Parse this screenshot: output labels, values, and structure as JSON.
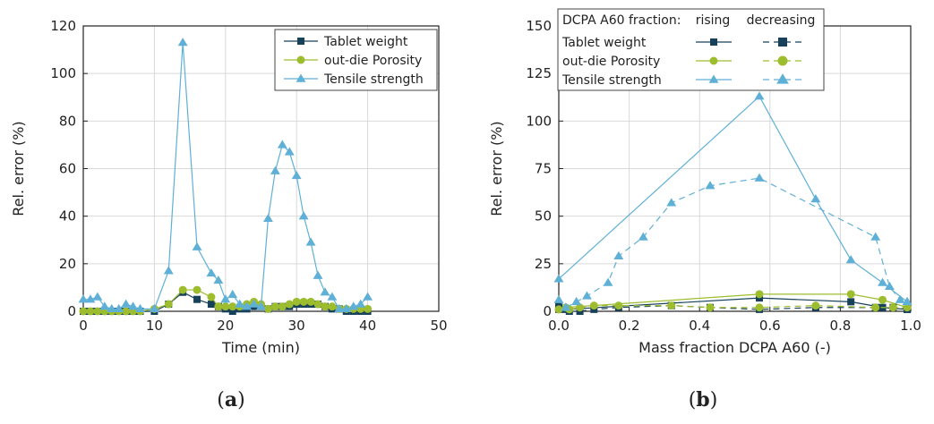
{
  "colors": {
    "weight": "#17415a",
    "porosity": "#9dbd2f",
    "tensile": "#5fb0d6",
    "grid": "#d9d9d9",
    "axis": "#222222"
  },
  "panels": {
    "a": {
      "prefix": "(",
      "letter": "a",
      "suffix": ")"
    },
    "b": {
      "prefix": "(",
      "letter": "b",
      "suffix": ")"
    }
  },
  "chart_data": [
    {
      "id": "a",
      "type": "line",
      "xlabel": "Time (min)",
      "ylabel": "Rel. error (%)",
      "xlim": [
        0,
        50
      ],
      "ylim": [
        0,
        120
      ],
      "xticks": [
        0,
        10,
        20,
        30,
        40,
        50
      ],
      "yticks": [
        0,
        20,
        40,
        60,
        80,
        100,
        120
      ],
      "grid": true,
      "legend": {
        "position": "top-right"
      },
      "series": [
        {
          "name": "Tablet weight",
          "key": "weight",
          "marker": "square",
          "x": [
            0,
            1,
            2,
            3,
            4,
            5,
            6,
            7,
            8,
            10,
            12,
            14,
            16,
            18,
            19,
            20,
            21,
            22,
            23,
            24,
            25,
            26,
            27,
            28,
            29,
            30,
            31,
            32,
            33,
            34,
            35,
            36,
            37,
            38,
            39,
            40
          ],
          "y": [
            0,
            0,
            0,
            0,
            0,
            0,
            0,
            0,
            0,
            0,
            3,
            8,
            5,
            3,
            2,
            1,
            0,
            1,
            1,
            2,
            2,
            1,
            2,
            2,
            2,
            3,
            3,
            3,
            3,
            2,
            1,
            1,
            0,
            0,
            0,
            0
          ]
        },
        {
          "name": "out-die Porosity",
          "key": "porosity",
          "marker": "circle",
          "x": [
            0,
            1,
            2,
            3,
            4,
            5,
            6,
            7,
            8,
            10,
            12,
            14,
            16,
            18,
            19,
            20,
            21,
            22,
            23,
            24,
            25,
            26,
            27,
            28,
            29,
            30,
            31,
            32,
            33,
            34,
            35,
            36,
            37,
            38,
            39,
            40
          ],
          "y": [
            0,
            0,
            0,
            0,
            0,
            0,
            0,
            0,
            0,
            1,
            3,
            9,
            9,
            6,
            2,
            2,
            2,
            2,
            3,
            4,
            3,
            1,
            2,
            2,
            3,
            4,
            4,
            4,
            3,
            2,
            2,
            1,
            1,
            1,
            1,
            1
          ]
        },
        {
          "name": "Tensile strength",
          "key": "tensile",
          "marker": "triangle",
          "x": [
            0,
            1,
            2,
            3,
            4,
            5,
            6,
            7,
            8,
            10,
            12,
            14,
            16,
            18,
            19,
            20,
            21,
            22,
            23,
            24,
            25,
            26,
            27,
            28,
            29,
            30,
            31,
            32,
            33,
            34,
            35,
            36,
            37,
            38,
            39,
            40
          ],
          "y": [
            5,
            5,
            6,
            2,
            1,
            1,
            3,
            2,
            1,
            1,
            17,
            113,
            27,
            16,
            13,
            5,
            7,
            3,
            2,
            3,
            2,
            39,
            59,
            70,
            67,
            57,
            40,
            29,
            15,
            8,
            6,
            1,
            1,
            2,
            3,
            6
          ]
        }
      ]
    },
    {
      "id": "b",
      "type": "line",
      "xlabel": "Mass fraction DCPA A60 (-)",
      "ylabel": "Rel. error (%)",
      "xlim": [
        0,
        1
      ],
      "ylim": [
        0,
        150
      ],
      "xticks": [
        0.0,
        0.2,
        0.4,
        0.6,
        0.8,
        1.0
      ],
      "xtick_labels": [
        "0.0",
        "0.2",
        "0.4",
        "0.6",
        "0.8",
        "1.0"
      ],
      "yticks": [
        0,
        25,
        50,
        75,
        100,
        125,
        150
      ],
      "grid": true,
      "legend": {
        "position": "top-right",
        "title": "DCPA A60 fraction:",
        "col_rising": "rising",
        "col_decreasing": "decreasing",
        "rows": [
          "Tablet weight",
          "out-die Porosity",
          "Tensile strength"
        ]
      },
      "series": [
        {
          "name": "Tablet weight",
          "key": "weight",
          "marker": "square",
          "style": "solid",
          "direction": "rising",
          "x": [
            0.0,
            0.02,
            0.57,
            0.83,
            0.92,
            0.99
          ],
          "y": [
            3,
            1,
            7,
            5,
            2,
            1
          ]
        },
        {
          "name": "out-die Porosity",
          "key": "porosity",
          "marker": "circle",
          "style": "solid",
          "direction": "rising",
          "x": [
            0.0,
            0.02,
            0.57,
            0.83,
            0.92,
            0.99
          ],
          "y": [
            1,
            2,
            9,
            9,
            6,
            2
          ]
        },
        {
          "name": "Tensile strength",
          "key": "tensile",
          "marker": "triangle",
          "style": "solid",
          "direction": "rising",
          "x": [
            0.0,
            0.57,
            0.73,
            0.83,
            0.92,
            0.99
          ],
          "y": [
            17,
            113,
            59,
            27,
            15,
            5
          ]
        },
        {
          "name": "Tablet weight",
          "key": "weight",
          "marker": "square",
          "style": "dashed",
          "direction": "decreasing",
          "x": [
            0.0,
            0.03,
            0.06,
            0.1,
            0.17,
            0.32,
            0.43,
            0.57,
            0.73,
            0.9,
            0.95,
            0.99
          ],
          "y": [
            1,
            0,
            0,
            1,
            2,
            3,
            2,
            1,
            2,
            2,
            2,
            1
          ]
        },
        {
          "name": "out-die Porosity",
          "key": "porosity",
          "marker": "circle",
          "style": "dashed",
          "direction": "decreasing",
          "x": [
            0.0,
            0.03,
            0.06,
            0.1,
            0.17,
            0.32,
            0.43,
            0.57,
            0.73,
            0.9,
            0.95,
            0.99
          ],
          "y": [
            1,
            1,
            2,
            3,
            3,
            3,
            2,
            2,
            3,
            2,
            2,
            2
          ]
        },
        {
          "name": "Tensile strength",
          "key": "tensile",
          "marker": "triangle",
          "style": "dashed",
          "direction": "decreasing",
          "x": [
            0.0,
            0.02,
            0.05,
            0.08,
            0.14,
            0.17,
            0.24,
            0.32,
            0.43,
            0.57,
            0.9,
            0.94,
            0.97,
            0.99
          ],
          "y": [
            6,
            2,
            5,
            8,
            15,
            29,
            39,
            57,
            66,
            70,
            39,
            13,
            6,
            5
          ]
        }
      ]
    }
  ]
}
